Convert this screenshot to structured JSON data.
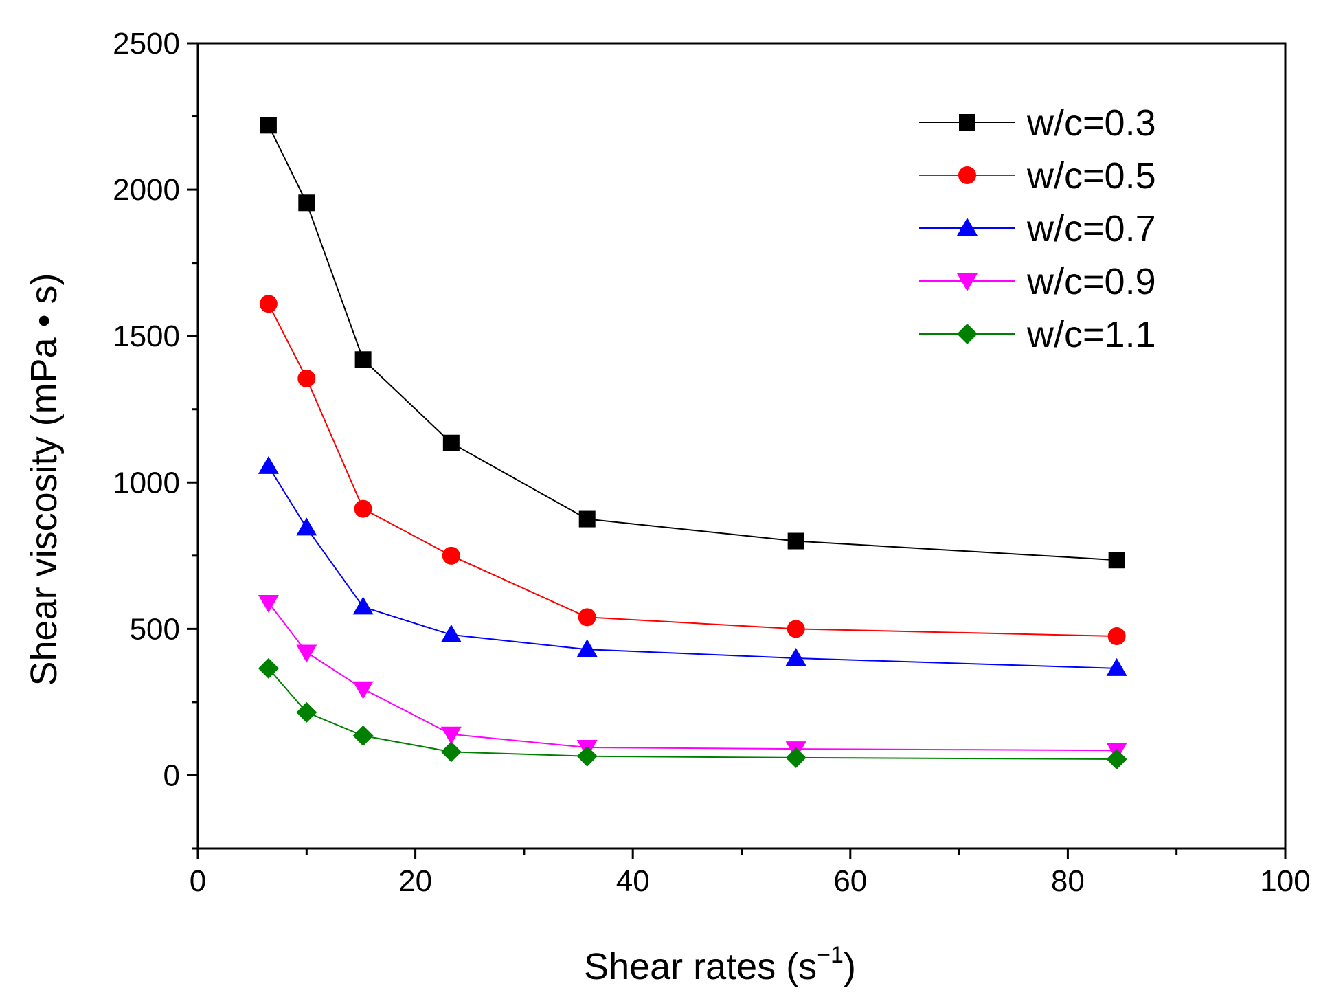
{
  "chart_data": {
    "type": "line",
    "title": "",
    "xlabel": "Shear rates (s",
    "xlabel_sup": "−1",
    "xlabel_close": ")",
    "ylabel": "Shear viscosity (mPa • s)",
    "xlim": [
      0,
      100
    ],
    "ylim": [
      -250,
      2500
    ],
    "xticks": [
      0,
      20,
      40,
      60,
      80,
      100
    ],
    "yticks": [
      0,
      500,
      1000,
      1500,
      2000,
      2500
    ],
    "xtick_labels": [
      "0",
      "20",
      "40",
      "60",
      "80",
      "100"
    ],
    "ytick_labels": [
      "0",
      "500",
      "1000",
      "1500",
      "2000",
      "2500"
    ],
    "grid": false,
    "legend_position": "top-right",
    "x": [
      6.5,
      10,
      15.2,
      23.3,
      35.8,
      55,
      84.5
    ],
    "series": [
      {
        "name": "w/c=0.3",
        "color": "#000000",
        "marker": "square",
        "values": [
          2220,
          1955,
          1420,
          1135,
          875,
          800,
          735
        ]
      },
      {
        "name": "w/c=0.5",
        "color": "#ff0000",
        "marker": "circle",
        "values": [
          1610,
          1355,
          910,
          750,
          540,
          500,
          475
        ]
      },
      {
        "name": "w/c=0.7",
        "color": "#0000ff",
        "marker": "triangle-up",
        "values": [
          1055,
          845,
          575,
          480,
          430,
          400,
          365
        ]
      },
      {
        "name": "w/c=0.9",
        "color": "#ff00ff",
        "marker": "triangle-down",
        "values": [
          590,
          420,
          295,
          140,
          95,
          90,
          85
        ]
      },
      {
        "name": "w/c=1.1",
        "color": "#008000",
        "marker": "diamond",
        "values": [
          365,
          215,
          135,
          80,
          65,
          60,
          55
        ]
      }
    ]
  }
}
